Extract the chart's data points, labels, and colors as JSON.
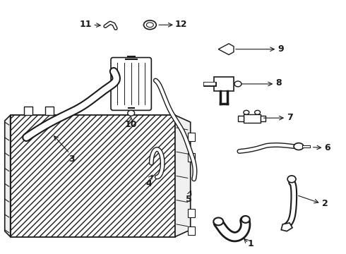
{
  "bg_color": "#ffffff",
  "line_color": "#1a1a1a",
  "figsize": [
    4.9,
    3.6
  ],
  "dpi": 100
}
